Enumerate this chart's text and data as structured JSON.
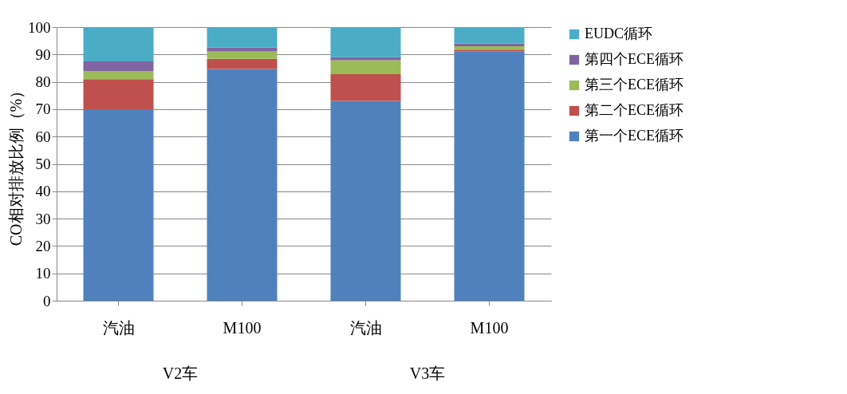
{
  "chart_data": {
    "type": "bar",
    "stacked": true,
    "categories": [
      "汽油",
      "M100",
      "汽油",
      "M100"
    ],
    "ylabel": "CO相对排放比例（%）",
    "ylim": [
      0,
      100
    ],
    "yticks": [
      0,
      10,
      20,
      30,
      40,
      50,
      60,
      70,
      80,
      90,
      100
    ],
    "grid": "y",
    "legend": "right",
    "annotations": [
      "V2车",
      "V3车"
    ],
    "series": [
      {
        "name": "第一个ECE循环",
        "color": "#4f81bd",
        "values": [
          70,
          84.7,
          73,
          91
        ]
      },
      {
        "name": "第二个ECE循环",
        "color": "#c0504d",
        "values": [
          11,
          3.7,
          9.8,
          0.8
        ]
      },
      {
        "name": "第三个ECE循环",
        "color": "#9bbb59",
        "values": [
          3,
          2.7,
          5.1,
          1.2
        ]
      },
      {
        "name": "第四个ECE循环",
        "color": "#8064a2",
        "values": [
          3.5,
          1.4,
          1.1,
          1
        ]
      },
      {
        "name": "EUDC循环",
        "color": "#4bacc6",
        "values": [
          12.5,
          7.5,
          11,
          6
        ]
      }
    ]
  }
}
